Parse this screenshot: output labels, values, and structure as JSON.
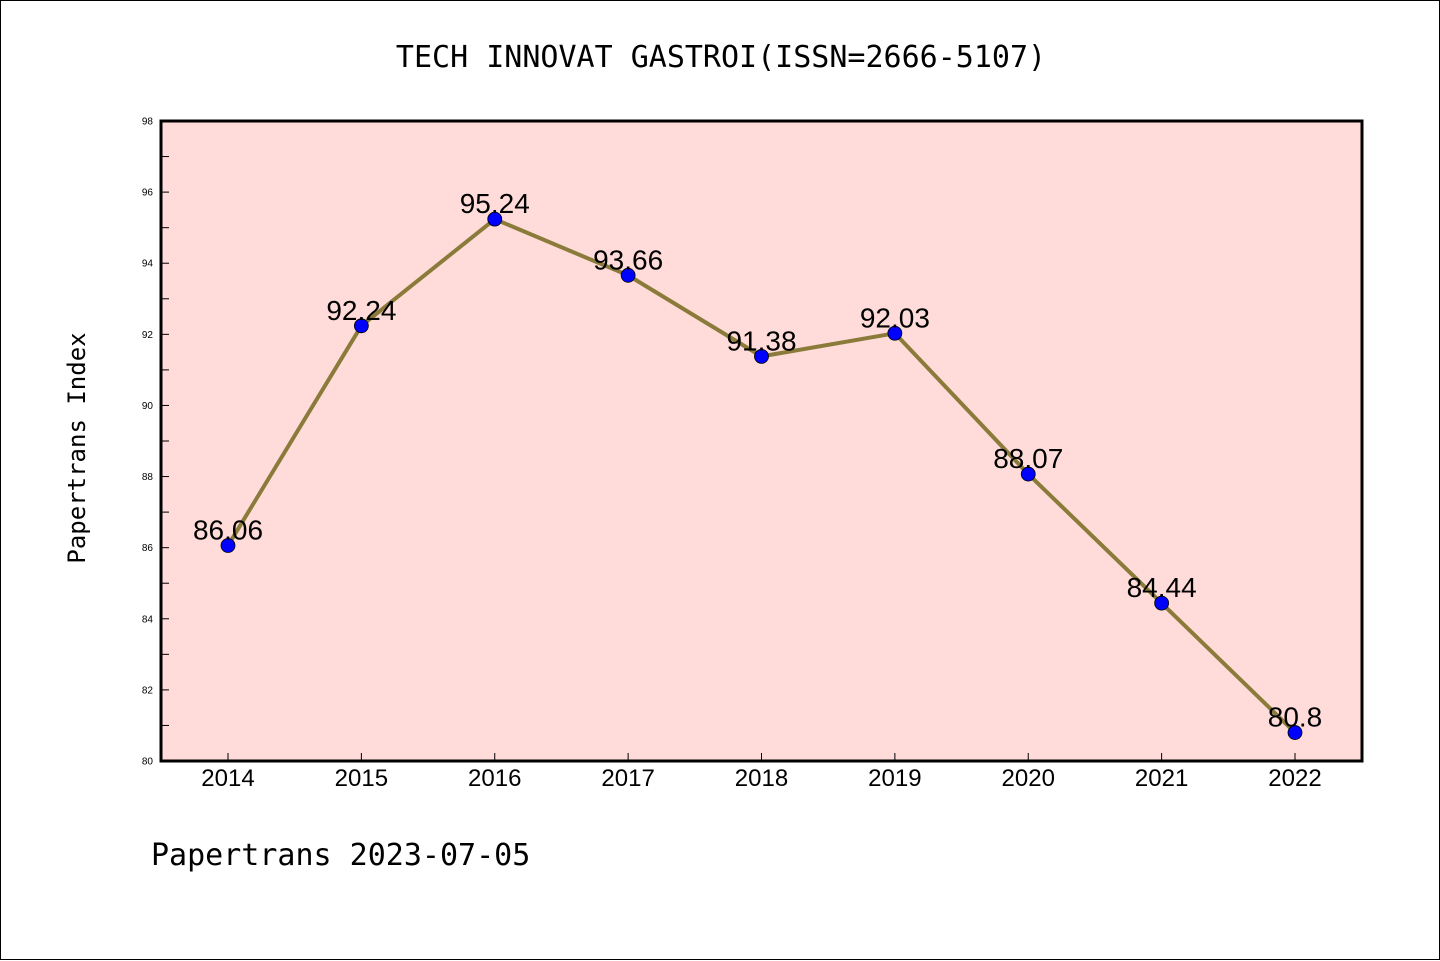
{
  "chart_data": {
    "type": "line",
    "title": "TECH INNOVAT GASTROI(ISSN=2666-5107)",
    "ylabel": "Papertrans Index",
    "xlabel": "",
    "footer": "Papertrans 2023-07-05",
    "categories": [
      "2014",
      "2015",
      "2016",
      "2017",
      "2018",
      "2019",
      "2020",
      "2021",
      "2022"
    ],
    "values": [
      86.06,
      92.24,
      95.24,
      93.66,
      91.38,
      92.03,
      88.07,
      84.44,
      80.8
    ],
    "data_labels": [
      "86.06",
      "92.24",
      "95.24",
      "93.66",
      "91.38",
      "92.03",
      "88.07",
      "84.44",
      "80.8"
    ],
    "ylim": [
      80,
      98
    ],
    "yticks": [
      80,
      82,
      84,
      86,
      88,
      90,
      92,
      94,
      96,
      98
    ],
    "grid": false,
    "colors": {
      "plot_background": "#ffdcd9",
      "line": "#8b7b3a",
      "marker": "#0000ff"
    }
  }
}
